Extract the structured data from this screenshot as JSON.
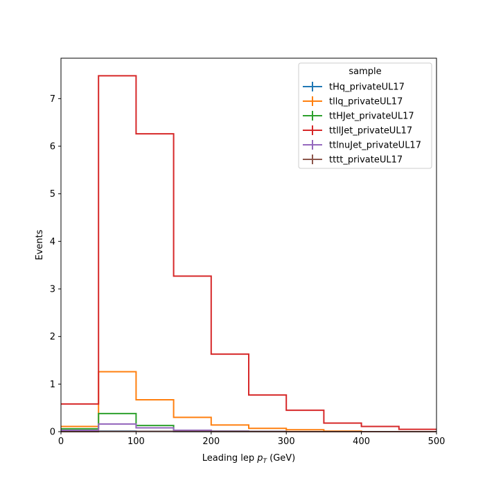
{
  "chart_data": {
    "type": "histogram-step",
    "xlabel": {
      "main": "Leading lep ",
      "var": "p",
      "sub": "T",
      "unit": " (GeV)"
    },
    "ylabel": "Events",
    "xlim": [
      0,
      500
    ],
    "ylim": [
      0,
      7.85
    ],
    "x_ticks": [
      0,
      100,
      200,
      300,
      400,
      500
    ],
    "x_tick_labels": [
      "0",
      "100",
      "200",
      "300",
      "400",
      "500"
    ],
    "y_ticks": [
      0,
      1,
      2,
      3,
      4,
      5,
      6,
      7
    ],
    "y_tick_labels": [
      "0",
      "1",
      "2",
      "3",
      "4",
      "5",
      "6",
      "7"
    ],
    "bin_edges": [
      0,
      50,
      100,
      150,
      200,
      250,
      300,
      350,
      400,
      450,
      500
    ],
    "legend": {
      "title": "sample",
      "placement": "upper-right"
    },
    "series": [
      {
        "name": "tHq_privateUL17",
        "color": "#1f77b4",
        "values": [
          0.005,
          0.01,
          0.008,
          0.004,
          0.002,
          0.001,
          0.0,
          0.0,
          0.0,
          0.0
        ]
      },
      {
        "name": "tllq_privateUL17",
        "color": "#ff7f0e",
        "values": [
          0.11,
          1.26,
          0.67,
          0.3,
          0.14,
          0.07,
          0.04,
          0.01,
          0.0,
          0.0
        ]
      },
      {
        "name": "ttHJet_privateUL17",
        "color": "#2ca02c",
        "values": [
          0.06,
          0.38,
          0.13,
          0.03,
          0.01,
          0.005,
          0.0,
          0.0,
          0.0,
          0.0
        ]
      },
      {
        "name": "ttllJet_privateUL17",
        "color": "#d62728",
        "values": [
          0.58,
          7.48,
          6.26,
          3.27,
          1.63,
          0.77,
          0.45,
          0.18,
          0.11,
          0.05
        ]
      },
      {
        "name": "ttlnuJet_privateUL17",
        "color": "#9467bd",
        "values": [
          0.03,
          0.16,
          0.08,
          0.03,
          0.01,
          0.005,
          0.0,
          0.0,
          0.0,
          0.0
        ]
      },
      {
        "name": "tttt_privateUL17",
        "color": "#8c564b",
        "values": [
          0.0,
          0.005,
          0.005,
          0.003,
          0.002,
          0.001,
          0.0,
          0.0,
          0.0,
          0.0
        ]
      }
    ]
  }
}
